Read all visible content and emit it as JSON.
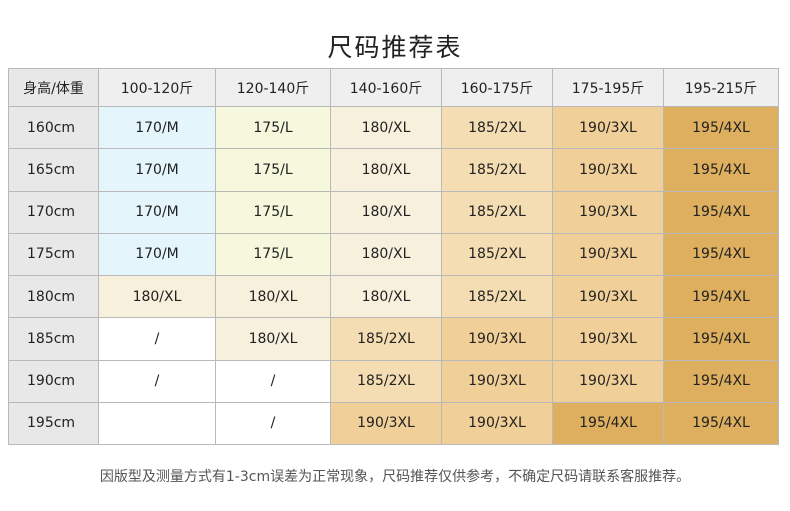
{
  "title": "尺码推荐表",
  "table": {
    "corner_label": "身高/体重",
    "columns": [
      "100-120斤",
      "120-140斤",
      "140-160斤",
      "160-175斤",
      "175-195斤",
      "195-215斤"
    ],
    "rows": [
      {
        "height": "160cm",
        "cells": [
          "170/M",
          "175/L",
          "180/XL",
          "185/2XL",
          "190/3XL",
          "195/4XL"
        ]
      },
      {
        "height": "165cm",
        "cells": [
          "170/M",
          "175/L",
          "180/XL",
          "185/2XL",
          "190/3XL",
          "195/4XL"
        ]
      },
      {
        "height": "170cm",
        "cells": [
          "170/M",
          "175/L",
          "180/XL",
          "185/2XL",
          "190/3XL",
          "195/4XL"
        ]
      },
      {
        "height": "175cm",
        "cells": [
          "170/M",
          "175/L",
          "180/XL",
          "185/2XL",
          "190/3XL",
          "195/4XL"
        ]
      },
      {
        "height": "180cm",
        "cells": [
          "180/XL",
          "180/XL",
          "180/XL",
          "185/2XL",
          "190/3XL",
          "195/4XL"
        ]
      },
      {
        "height": "185cm",
        "cells": [
          "/",
          "180/XL",
          "185/2XL",
          "190/3XL",
          "190/3XL",
          "195/4XL"
        ]
      },
      {
        "height": "190cm",
        "cells": [
          "/",
          "/",
          "185/2XL",
          "190/3XL",
          "190/3XL",
          "195/4XL"
        ]
      },
      {
        "height": "195cm",
        "cells": [
          "",
          "/",
          "190/3XL",
          "190/3XL",
          "195/4XL",
          "195/4XL"
        ]
      }
    ]
  },
  "size_colors": {
    "170/M": "#e4f6fb",
    "175/L": "#f5f8dc",
    "180/XL": "#f7f0dc",
    "185/2XL": "#f4ddb3",
    "190/3XL": "#f1cf98",
    "195/4XL": "#ddaf5e",
    "/": "#ffffff",
    "": "#ffffff"
  },
  "footnote": "因版型及测量方式有1-3cm误差为正常现象，尺码推荐仅供参考，不确定尺码请联系客服推荐。"
}
